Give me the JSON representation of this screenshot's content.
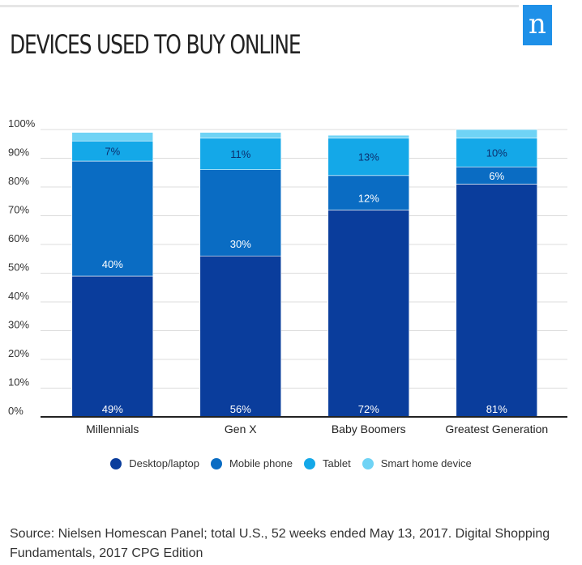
{
  "header": {
    "title": "DEVICES USED TO BUY ONLINE",
    "logo_text": "n"
  },
  "chart_data": {
    "type": "bar",
    "stacked": true,
    "categories": [
      "Millennials",
      "Gen X",
      "Baby Boomers",
      "Greatest Generation"
    ],
    "series": [
      {
        "name": "Desktop/laptop",
        "color": "#0a3d9c",
        "values": [
          49,
          56,
          72,
          81
        ]
      },
      {
        "name": "Mobile phone",
        "color": "#0a6cc3",
        "values": [
          40,
          30,
          12,
          6
        ]
      },
      {
        "name": "Tablet",
        "color": "#14a8e8",
        "values": [
          7,
          11,
          13,
          10
        ]
      },
      {
        "name": "Smart home device",
        "color": "#6fd3f5",
        "values": [
          3,
          2,
          1,
          3
        ]
      }
    ],
    "data_labels": [
      [
        "49%",
        "56%",
        "72%",
        "81%"
      ],
      [
        "40%",
        "30%",
        "12%",
        "6%"
      ],
      [
        "7%",
        "11%",
        "13%",
        "10%"
      ],
      [
        "",
        "",
        "",
        ""
      ]
    ],
    "ylim": [
      0,
      100
    ],
    "yticks": [
      "0%",
      "10%",
      "20%",
      "30%",
      "40%",
      "50%",
      "60%",
      "70%",
      "80%",
      "90%",
      "100%"
    ],
    "xlabel": "",
    "ylabel": "",
    "grid": true,
    "legend_position": "bottom"
  },
  "legend": [
    {
      "label": "Desktop/laptop",
      "color": "#0a3d9c"
    },
    {
      "label": "Mobile phone",
      "color": "#0a6cc3"
    },
    {
      "label": "Tablet",
      "color": "#14a8e8"
    },
    {
      "label": "Smart home device",
      "color": "#6fd3f5"
    }
  ],
  "source": "Source: Nielsen Homescan Panel; total U.S., 52 weeks ended May 13, 2017. Digital Shopping Fundamentals, 2017 CPG Edition"
}
